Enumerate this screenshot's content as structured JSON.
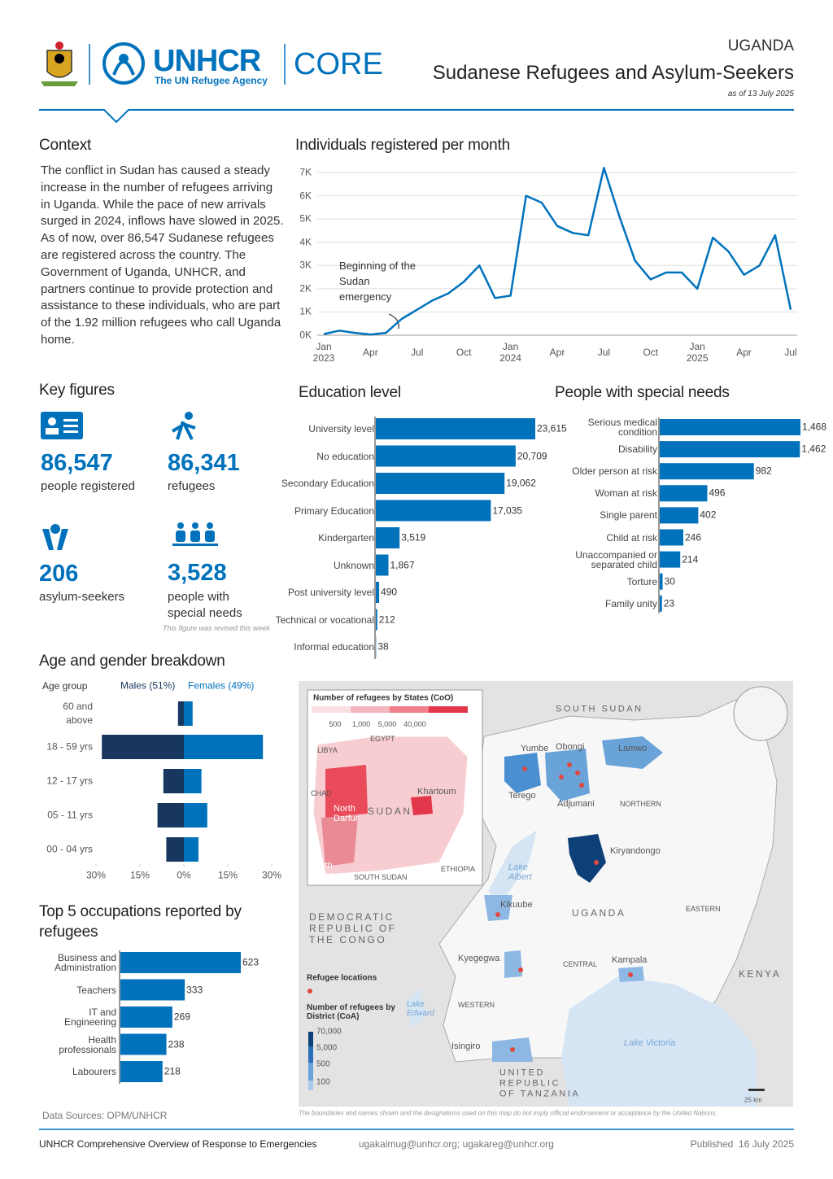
{
  "header": {
    "org": "UNHCR",
    "org_tagline": "The UN Refugee Agency",
    "product": "CORE",
    "country": "UGANDA",
    "title": "Sudanese Refugees and Asylum-Seekers",
    "date": "as of 13 July 2025"
  },
  "context": {
    "title": "Context",
    "text": "The conflict in Sudan has caused a steady increase in the number of refugees arriving in Uganda. While the pace of new arrivals surged in 2024, inflows have slowed in 2025. As of now, over 86,547 Sudanese refugees are registered across the country. The Government of Uganda, UNHCR, and partners continue to provide protection and assistance to these individuals, who are part of the 1.92 million refugees who call Uganda home."
  },
  "key_figures": {
    "title": "Key figures",
    "items": [
      {
        "value": "86,547",
        "label": "people registered"
      },
      {
        "value": "86,341",
        "label": "refugees"
      },
      {
        "value": "206",
        "label": "asylum-seekers"
      },
      {
        "value": "3,528",
        "label": "people with special needs"
      }
    ],
    "note": "This figure was revised this week"
  },
  "chart_data": [
    {
      "type": "line",
      "title": "Individuals registered per month",
      "categories": [
        "Jan 2023",
        null,
        null,
        "Apr",
        null,
        null,
        "Jul",
        null,
        null,
        "Oct",
        null,
        null,
        "Jan 2024",
        null,
        null,
        "Apr",
        null,
        null,
        "Jul",
        null,
        null,
        "Oct",
        null,
        null,
        "Jan 2025",
        null,
        null,
        "Apr",
        null,
        null,
        "Jul"
      ],
      "values": [
        50,
        200,
        100,
        30,
        100,
        700,
        1100,
        1500,
        1800,
        2300,
        3000,
        1600,
        1700,
        6000,
        5700,
        4700,
        4400,
        4300,
        7200,
        5100,
        3200,
        2400,
        2700,
        2700,
        2000,
        4200,
        3600,
        2600,
        3000,
        4300,
        1100
      ],
      "color": "#0072bc",
      "ylim": [
        0,
        7300
      ],
      "yticks": [
        {
          "value": 0,
          "label": "0K"
        },
        {
          "value": 1000,
          "label": "1K"
        },
        {
          "value": 2000,
          "label": "2K"
        },
        {
          "value": 3000,
          "label": "3K"
        },
        {
          "value": 4000,
          "label": "4K"
        },
        {
          "value": 5000,
          "label": "5K"
        },
        {
          "value": 6000,
          "label": "6K"
        },
        {
          "value": 7000,
          "label": "7K"
        }
      ],
      "grid": true,
      "annotation": "Beginning of the Sudan emergency"
    },
    {
      "type": "bar",
      "orientation": "horizontal",
      "title": "Education level",
      "categories": [
        "University level",
        "No education",
        "Secondary Education",
        "Primary Education",
        "Kindergarten",
        "Unknown",
        "Post university level",
        "Technical or vocational",
        "Informal education"
      ],
      "values": [
        23615,
        20709,
        19062,
        17035,
        3519,
        1867,
        490,
        212,
        38
      ],
      "value_labels": [
        "23,615",
        "20,709",
        "19,062",
        "17,035",
        "3,519",
        "1,867",
        "490",
        "212",
        "38"
      ],
      "color": "#0072bc"
    },
    {
      "type": "bar",
      "orientation": "horizontal",
      "title": "People with special needs",
      "categories": [
        "Serious medical condition",
        "Disability",
        "Older person at risk",
        "Woman at risk",
        "Single parent",
        "Child at risk",
        "Unaccompanied or separated child",
        "Torture",
        "Family unity"
      ],
      "values": [
        1468,
        1462,
        982,
        496,
        402,
        246,
        214,
        30,
        23
      ],
      "value_labels": [
        "1,468",
        "1,462",
        "982",
        "496",
        "402",
        "246",
        "214",
        "30",
        "23"
      ],
      "color": "#0072bc"
    },
    {
      "type": "bar",
      "orientation": "horizontal",
      "title": "Age and gender breakdown",
      "ylabel": "Age group",
      "categories": [
        "60 and above",
        "18 - 59 yrs",
        "12 - 17 yrs",
        "05 - 11 yrs",
        "00 - 04 yrs"
      ],
      "series": [
        {
          "name": "Males (51%)",
          "color": "#18375f",
          "values": [
            -2,
            -28,
            -7,
            -9,
            -6
          ]
        },
        {
          "name": "Females (49%)",
          "color": "#0072bc",
          "values": [
            3,
            27,
            6,
            8,
            5
          ]
        }
      ],
      "xlim": [
        -30,
        30
      ],
      "xticks": [
        {
          "value": -30,
          "label": "30%"
        },
        {
          "value": -15,
          "label": "15%"
        },
        {
          "value": 0,
          "label": "0%"
        },
        {
          "value": 15,
          "label": "15%"
        },
        {
          "value": 30,
          "label": "30%"
        }
      ]
    },
    {
      "type": "bar",
      "orientation": "horizontal",
      "title": "Top 5 occupations reported by refugees",
      "categories": [
        "Business and Administration",
        "Teachers",
        "IT and Engineering",
        "Health professionals",
        "Labourers"
      ],
      "values": [
        623,
        333,
        269,
        238,
        218
      ],
      "color": "#0072bc"
    }
  ],
  "map": {
    "labels": [
      "Number of refugees by States (CoO)",
      "500",
      "1,000",
      "5,000",
      "40,000",
      "EGYPT",
      "LIBYA",
      "CHAD",
      "Khartoum",
      "North Darfur",
      "SUDAN",
      "South Darfur",
      "SOUTH SUDAN",
      "ETHIOPIA",
      "SOUTH SUDAN",
      "Yumbe",
      "Obongi",
      "Lamwo",
      "Terego",
      "Adjumani",
      "NORTHERN",
      "Kiryandongo",
      "Lake Albert",
      "Kikuube",
      "UGANDA",
      "EASTERN",
      "DEMOCRATIC REPUBLIC OF THE CONGO",
      "Kyegegwa",
      "CENTRAL",
      "Kampala",
      "KENYA",
      "Refugee locations",
      "Number of refugees by District (CoA)",
      "70,000",
      "5,000",
      "500",
      "100",
      "WESTERN",
      "Lake Edward",
      "Isingiro",
      "UNITED REPUBLIC OF TANZANIA",
      "Lake Victoria",
      "25 km",
      "The boundaries and names shown and the designations used on this map do not imply official endorsement or acceptance by the United Nations."
    ]
  },
  "footer": {
    "sources": "Data Sources: OPM/UNHCR",
    "product_name": "UNHCR Comprehensive Overview of Response to Emergencies",
    "contacts": "ugakaimug@unhcr.org; ugakareg@unhcr.org",
    "published": "Published  16 July 2025"
  }
}
